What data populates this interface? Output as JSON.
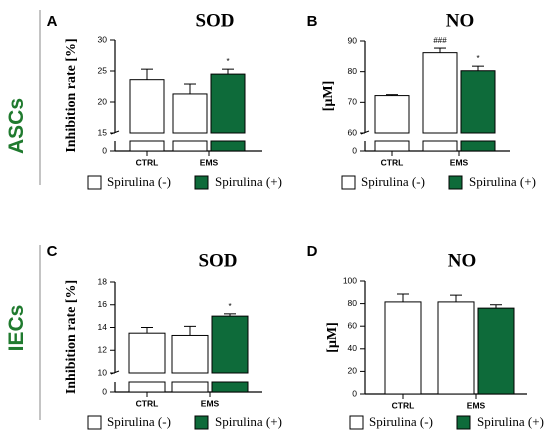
{
  "row_labels": {
    "top": "ASCs",
    "bottom": "IECs"
  },
  "row_label_color": "#1f7a2e",
  "legend": {
    "neg_label": "Spirulina (-)",
    "pos_label": "Spirulina (+)"
  },
  "colors": {
    "spirulina_neg": "#ffffff",
    "spirulina_pos": "#0e6b3a",
    "row_label": "#1f7a2e"
  },
  "chart_data": [
    {
      "panel": "A",
      "type": "bar",
      "title": "SOD",
      "ylabel": "Inhibition rate [%]",
      "xlabel": "",
      "categories": [
        "CTRL",
        "EMS"
      ],
      "series": [
        {
          "name": "Spirulina (-)",
          "values": [
            23.6,
            21.3
          ],
          "errors": [
            1.7,
            1.6
          ]
        },
        {
          "name": "Spirulina (+)",
          "values": [
            null,
            24.5
          ],
          "errors": [
            null,
            0.8
          ]
        }
      ],
      "annotations": [
        {
          "category": "EMS",
          "series": "Spirulina (+)",
          "text": "*"
        }
      ],
      "ylim": [
        15,
        30
      ],
      "yticks": [
        15,
        20,
        25,
        30
      ],
      "axis_break": {
        "below": 15,
        "low_tick": 0
      },
      "y_tick_labels": [
        "0",
        "15",
        "20",
        "25",
        "30"
      ]
    },
    {
      "panel": "B",
      "type": "bar",
      "title": "NO",
      "ylabel": "[µM]",
      "xlabel": "",
      "categories": [
        "CTRL",
        "EMS"
      ],
      "series": [
        {
          "name": "Spirulina (-)",
          "values": [
            72.2,
            86.2
          ],
          "errors": [
            0.3,
            1.5
          ]
        },
        {
          "name": "Spirulina (+)",
          "values": [
            null,
            80.3
          ],
          "errors": [
            null,
            1.5
          ]
        }
      ],
      "annotations": [
        {
          "category": "EMS",
          "series": "Spirulina (-)",
          "text": "###"
        },
        {
          "category": "EMS",
          "series": "Spirulina (+)",
          "text": "*"
        }
      ],
      "ylim": [
        60,
        90
      ],
      "yticks": [
        60,
        70,
        80,
        90
      ],
      "axis_break": {
        "below": 60,
        "low_tick": 0
      },
      "y_tick_labels": [
        "0",
        "60",
        "70",
        "80",
        "90"
      ]
    },
    {
      "panel": "C",
      "type": "bar",
      "title": "SOD",
      "ylabel": "Inhibition rate [%]",
      "xlabel": "",
      "categories": [
        "CTRL",
        "EMS"
      ],
      "series": [
        {
          "name": "Spirulina (-)",
          "values": [
            13.5,
            13.3
          ],
          "errors": [
            0.5,
            0.8
          ]
        },
        {
          "name": "Spirulina (+)",
          "values": [
            null,
            15.0
          ],
          "errors": [
            null,
            0.2
          ]
        }
      ],
      "annotations": [
        {
          "category": "EMS",
          "series": "Spirulina (+)",
          "text": "*"
        }
      ],
      "ylim": [
        10,
        18
      ],
      "yticks": [
        10,
        12,
        14,
        16,
        18
      ],
      "axis_break": {
        "below": 10,
        "low_tick": 0
      },
      "y_tick_labels": [
        "0",
        "10",
        "12",
        "14",
        "16",
        "18"
      ]
    },
    {
      "panel": "D",
      "type": "bar",
      "title": "NO",
      "ylabel": "[µM]",
      "xlabel": "",
      "categories": [
        "CTRL",
        "EMS"
      ],
      "series": [
        {
          "name": "Spirulina (-)",
          "values": [
            81.5,
            81.5
          ],
          "errors": [
            7,
            6
          ]
        },
        {
          "name": "Spirulina (+)",
          "values": [
            null,
            76.0
          ],
          "errors": [
            null,
            3
          ]
        }
      ],
      "annotations": [],
      "ylim": [
        0,
        100
      ],
      "yticks": [
        0,
        20,
        40,
        60,
        80,
        100
      ],
      "y_tick_labels": [
        "0",
        "20",
        "40",
        "60",
        "80",
        "100"
      ]
    }
  ]
}
